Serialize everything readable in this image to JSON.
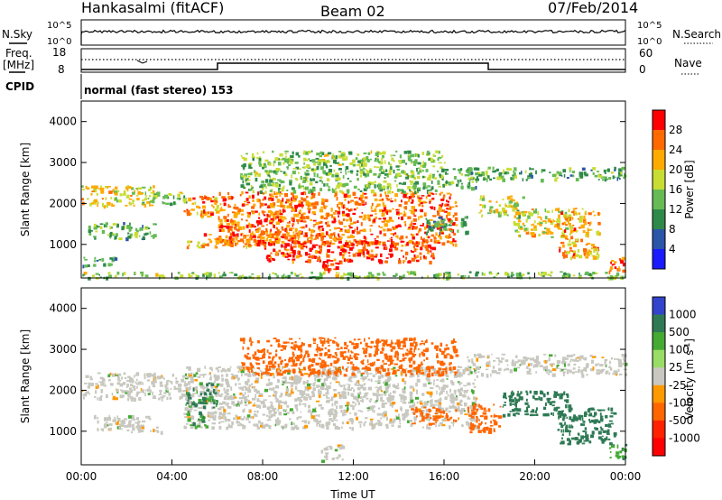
{
  "header": {
    "station": "Hankasalmi (fitACF)",
    "beam": "Beam 02",
    "date": "07/Feb/2014"
  },
  "top_panels": {
    "nsky_label": "N.Sky",
    "nsearch_label": "N.Search",
    "nsky_tick_top": "10^5",
    "nsky_tick_bottom": "10^0",
    "nsearch_tick_top": "10^5",
    "nsearch_tick_bottom": "10^0",
    "freq_label_top": "Freq.",
    "freq_label_bottom": "[MHz]",
    "freq_tick_top": "18",
    "freq_tick_bottom": "8",
    "nave_label": "Nave",
    "nave_tick_top": "60",
    "nave_tick_bottom": "0",
    "cpid_label": "CPID",
    "cpid_text": "normal (fast stereo) 153"
  },
  "colors": {
    "power_scale": [
      "#1a1aff",
      "#2a55a8",
      "#2f8a4a",
      "#66bb55",
      "#c8dd33",
      "#ffaa00",
      "#ff6a00",
      "#ff0000"
    ],
    "velocity_scale": [
      "#3344cc",
      "#2f7a55",
      "#44aa33",
      "#99dd66",
      "#c8c8c0",
      "#ff9900",
      "#ff6600",
      "#ff2200",
      "#ff0000"
    ],
    "ground_scatter": "#c0c0b8"
  },
  "chart_data": [
    {
      "type": "heatmap",
      "ylabel": "Slant Range [km]",
      "xlabel": "Time UT",
      "x_ticks": [
        "00:00",
        "04:00",
        "08:00",
        "12:00",
        "16:00",
        "20:00",
        "00:00"
      ],
      "y_ticks": [
        "1000",
        "2000",
        "3000",
        "4000"
      ],
      "xlim": [
        0,
        24
      ],
      "ylim": [
        180,
        4500
      ],
      "colorbar": {
        "label": "Power [dB]",
        "ticks": [
          "4",
          "8",
          "12",
          "16",
          "20",
          "24",
          "28"
        ],
        "range": [
          0,
          30
        ]
      },
      "regions": [
        {
          "t0": 0.0,
          "t1": 24.0,
          "r0": 200,
          "r1": 350,
          "value": 14
        },
        {
          "t0": 0.0,
          "t1": 3.2,
          "r0": 1950,
          "r1": 2450,
          "value": 18
        },
        {
          "t0": 2.6,
          "t1": 4.6,
          "r0": 2000,
          "r1": 2300,
          "value": 14
        },
        {
          "t0": 0.3,
          "t1": 3.2,
          "r0": 1150,
          "r1": 1550,
          "value": 12
        },
        {
          "t0": 0.0,
          "t1": 1.5,
          "r0": 500,
          "r1": 700,
          "value": 10
        },
        {
          "t0": 4.5,
          "t1": 6.0,
          "r0": 1700,
          "r1": 2200,
          "value": 22
        },
        {
          "t0": 4.6,
          "t1": 7.5,
          "r0": 950,
          "r1": 1150,
          "value": 20
        },
        {
          "t0": 5.3,
          "t1": 11.5,
          "r0": 1100,
          "r1": 1300,
          "value": 24
        },
        {
          "t0": 6.0,
          "t1": 16.5,
          "r0": 1000,
          "r1": 2300,
          "value": 24
        },
        {
          "t0": 8.0,
          "t1": 15.5,
          "r0": 600,
          "r1": 1100,
          "value": 26
        },
        {
          "t0": 10.5,
          "t1": 11.3,
          "r0": 350,
          "r1": 600,
          "value": 28
        },
        {
          "t0": 7.0,
          "t1": 16.0,
          "r0": 2300,
          "r1": 3300,
          "value": 14
        },
        {
          "t0": 16.0,
          "t1": 17.5,
          "r0": 2400,
          "r1": 2900,
          "value": 12
        },
        {
          "t0": 15.0,
          "t1": 17.0,
          "r0": 1300,
          "r1": 1700,
          "value": 10
        },
        {
          "t0": 17.0,
          "t1": 24.0,
          "r0": 2600,
          "r1": 2900,
          "value": 12
        },
        {
          "t0": 17.5,
          "t1": 19.5,
          "r0": 1700,
          "r1": 2200,
          "value": 16
        },
        {
          "t0": 19.0,
          "t1": 21.5,
          "r0": 1200,
          "r1": 1900,
          "value": 18
        },
        {
          "t0": 21.0,
          "t1": 22.8,
          "r0": 700,
          "r1": 1900,
          "value": 22
        },
        {
          "t0": 23.2,
          "t1": 24.0,
          "r0": 350,
          "r1": 700,
          "value": 26
        }
      ]
    },
    {
      "type": "heatmap",
      "ylabel": "Slant Range [km]",
      "xlabel": "Time UT",
      "x_ticks": [
        "00:00",
        "04:00",
        "08:00",
        "12:00",
        "16:00",
        "20:00",
        "00:00"
      ],
      "y_ticks": [
        "1000",
        "2000",
        "3000",
        "4000"
      ],
      "xlim": [
        0,
        24
      ],
      "ylim": [
        180,
        4500
      ],
      "colorbar": {
        "label": "Velocity [m s^-1]",
        "ticks": [
          "1000",
          "500",
          "100",
          "25",
          "-25",
          "-100",
          "-500",
          "-1000"
        ]
      },
      "regions": [
        {
          "t0": 0.0,
          "t1": 4.6,
          "r0": 1800,
          "r1": 2450,
          "value": 0
        },
        {
          "t0": 4.5,
          "t1": 17.5,
          "r0": 1100,
          "r1": 2600,
          "value": 0
        },
        {
          "t0": 17.0,
          "t1": 24.0,
          "r0": 2400,
          "r1": 2900,
          "value": 0
        },
        {
          "t0": 10.5,
          "t1": 11.5,
          "r0": 300,
          "r1": 700,
          "value": 0
        },
        {
          "t0": 4.6,
          "t1": 6.0,
          "r0": 1600,
          "r1": 2200,
          "value": 150
        },
        {
          "t0": 4.6,
          "t1": 5.5,
          "r0": 1100,
          "r1": 1500,
          "value": 80
        },
        {
          "t0": 7.0,
          "t1": 16.5,
          "r0": 2400,
          "r1": 3300,
          "value": -300
        },
        {
          "t0": 14.5,
          "t1": 16.5,
          "r0": 1200,
          "r1": 1600,
          "value": -200
        },
        {
          "t0": 17.0,
          "t1": 18.5,
          "r0": 1000,
          "r1": 1700,
          "value": -200
        },
        {
          "t0": 18.5,
          "t1": 21.5,
          "r0": 1400,
          "r1": 2000,
          "value": 300
        },
        {
          "t0": 21.0,
          "t1": 23.5,
          "r0": 700,
          "r1": 1600,
          "value": 200
        },
        {
          "t0": 23.2,
          "t1": 24.0,
          "r0": 350,
          "r1": 700,
          "value": 80
        },
        {
          "t0": 0.5,
          "t1": 3.5,
          "r0": 1000,
          "r1": 1400,
          "value": 0
        }
      ]
    }
  ]
}
